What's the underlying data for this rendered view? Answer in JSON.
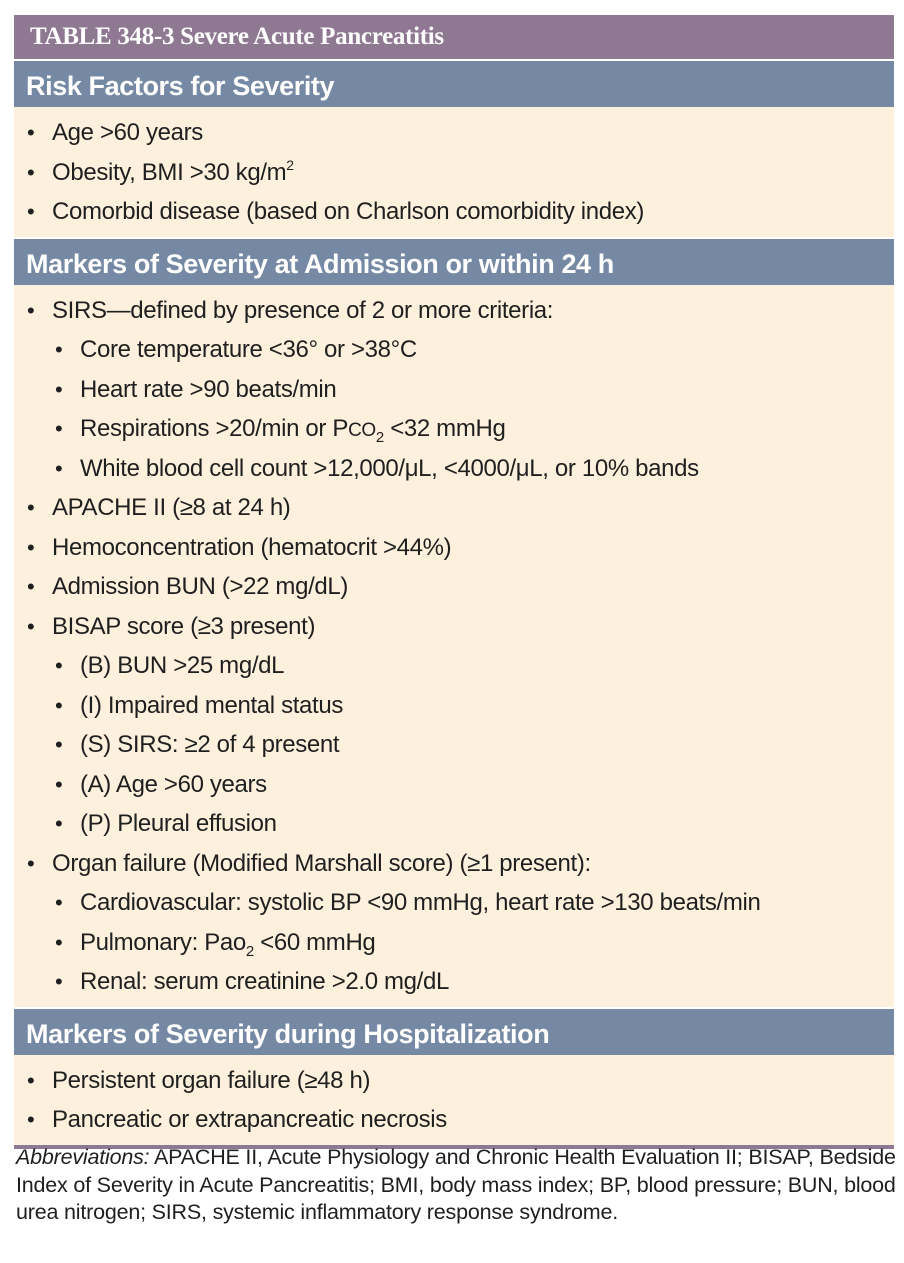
{
  "table": {
    "title": "TABLE 348-3  Severe Acute Pancreatitis",
    "sections": [
      {
        "heading": "Risk Factors for Severity",
        "items": [
          {
            "text": "Age >60 years"
          },
          {
            "text": "Obesity, BMI >30 kg/m",
            "sup": "2"
          },
          {
            "text": "Comorbid disease (based on Charlson comorbidity index)"
          }
        ]
      },
      {
        "heading": "Markers of Severity at Admission or within 24 h",
        "items": [
          {
            "text": "SIRS—defined by presence of 2 or more criteria:"
          },
          {
            "text": "Core temperature <36° or >38°C"
          },
          {
            "text": "Heart rate >90 beats/min"
          },
          {
            "pre": "Respirations >20/min or P",
            "sc": "CO",
            "sub": "2",
            "post": " <32 mmHg"
          },
          {
            "text": "White blood cell count >12,000/μL, <4000/μL, or 10% bands"
          },
          {
            "text": "APACHE II (≥8 at 24 h)"
          },
          {
            "text": "Hemoconcentration (hematocrit >44%)"
          },
          {
            "text": "Admission BUN (>22 mg/dL)"
          },
          {
            "text": "BISAP score (≥3 present)"
          },
          {
            "text": "(B) BUN >25 mg/dL"
          },
          {
            "text": "(I) Impaired mental status"
          },
          {
            "text": "(S) SIRS: ≥2 of 4 present"
          },
          {
            "text": "(A) Age >60 years"
          },
          {
            "text": "(P) Pleural effusion"
          },
          {
            "text": "Organ failure (Modified Marshall score) (≥1 present):"
          },
          {
            "text": "Cardiovascular: systolic BP <90 mmHg, heart rate >130 beats/min"
          },
          {
            "pre": "Pulmonary: Pao",
            "sub": "2",
            "post": " <60 mmHg"
          },
          {
            "text": "Renal: serum creatinine >2.0 mg/dL"
          }
        ]
      },
      {
        "heading": "Markers of Severity during Hospitalization",
        "items": [
          {
            "text": "Persistent organ failure (≥48 h)"
          },
          {
            "text": "Pancreatic or extrapancreatic necrosis"
          }
        ]
      }
    ],
    "bullet": "•"
  },
  "footnote": {
    "label": "Abbreviations:",
    "text": " APACHE II, Acute Physiology and Chronic Health Evaluation II; BISAP, Bedside Index of Severity in Acute Pancreatitis; BMI, body mass index; BP, blood pressure; BUN, blood urea nitrogen; SIRS, systemic inflammatory response syndrome."
  }
}
